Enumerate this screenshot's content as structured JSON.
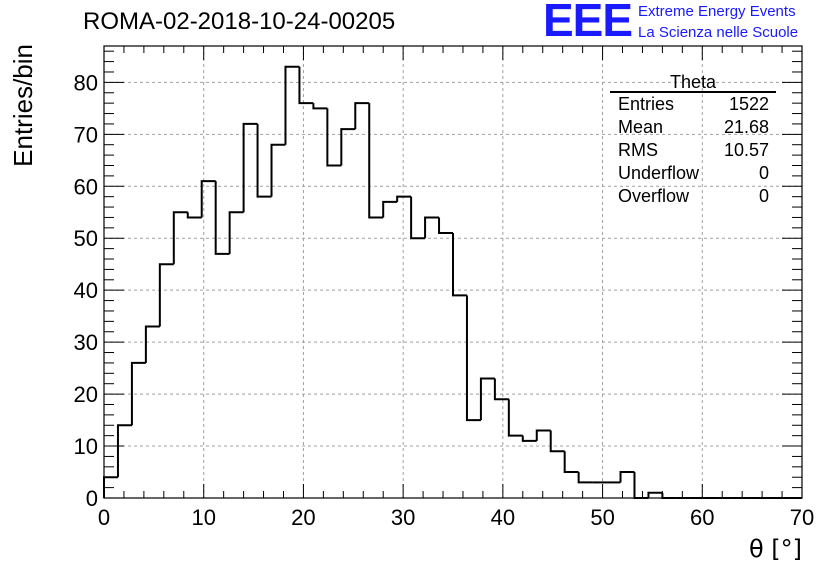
{
  "title": "ROMA-02-2018-10-24-00205",
  "logo": {
    "mark": "EEE",
    "line1": "Extreme Energy Events",
    "line2": "La Scienza nelle Scuole"
  },
  "colors": {
    "logo": "#1a1aff",
    "histogram": "#000000",
    "grid": "#a0a0a0"
  },
  "stats": {
    "name": "Theta",
    "rows": [
      {
        "label": "Entries",
        "value": "1522"
      },
      {
        "label": "Mean",
        "value": "21.68"
      },
      {
        "label": "RMS",
        "value": "10.57"
      },
      {
        "label": "Underflow",
        "value": "0"
      },
      {
        "label": "Overflow",
        "value": "0"
      }
    ]
  },
  "chart_data": {
    "type": "histogram",
    "xlabel": "θ [°]",
    "ylabel": "Entries/bin",
    "xlim": [
      0,
      70
    ],
    "ylim": [
      0,
      87
    ],
    "x_ticks": [
      0,
      10,
      20,
      30,
      40,
      50,
      60,
      70
    ],
    "y_ticks": [
      0,
      10,
      20,
      30,
      40,
      50,
      60,
      70,
      80
    ],
    "grid": true,
    "bin_width": 1.4,
    "bin_edges_start": 0,
    "values": [
      4,
      14,
      26,
      33,
      45,
      55,
      54,
      61,
      47,
      55,
      72,
      58,
      68,
      83,
      76,
      75,
      64,
      71,
      76,
      54,
      57,
      58,
      50,
      54,
      51,
      39,
      15,
      23,
      19,
      12,
      11,
      13,
      9,
      5,
      3,
      3,
      3,
      5,
      0,
      1,
      0,
      0,
      0,
      0,
      0,
      0,
      0,
      0,
      0,
      0
    ]
  }
}
